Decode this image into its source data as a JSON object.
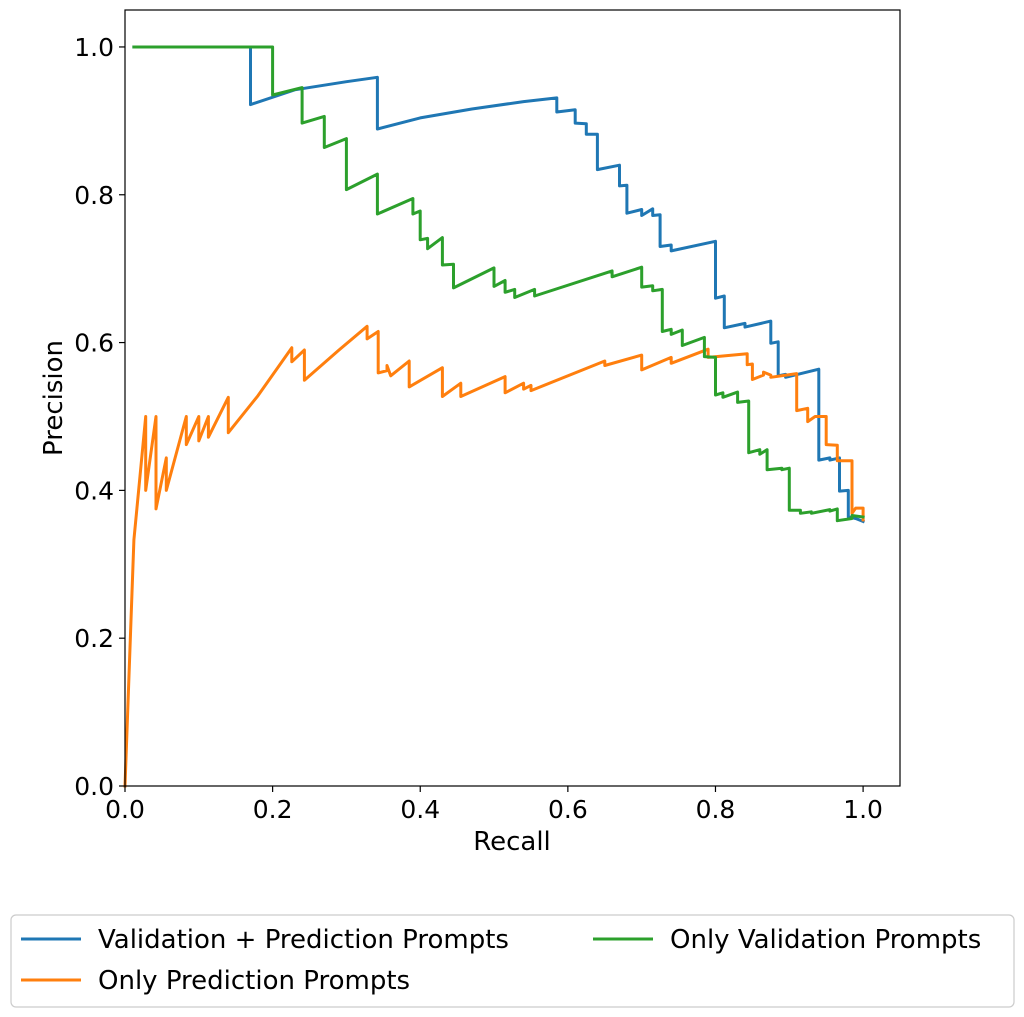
{
  "chart_data": {
    "type": "line",
    "xlabel": "Recall",
    "ylabel": "Precision",
    "xlim": [
      0.0,
      1.05
    ],
    "ylim": [
      0.0,
      1.05
    ],
    "xticks": [
      "0.0",
      "0.2",
      "0.4",
      "0.6",
      "0.8",
      "1.0"
    ],
    "yticks": [
      "0.0",
      "0.2",
      "0.4",
      "0.6",
      "0.8",
      "1.0"
    ],
    "grid": false,
    "legend_position": "bottom-outside",
    "series": [
      {
        "name": "Validation + Prediction Prompts",
        "color": "#1f77b4",
        "points": [
          [
            0.012,
            1.0
          ],
          [
            0.17,
            1.0
          ],
          [
            0.17,
            0.922
          ],
          [
            0.23,
            0.942
          ],
          [
            0.3,
            0.953
          ],
          [
            0.342,
            0.959
          ],
          [
            0.342,
            0.889
          ],
          [
            0.4,
            0.904
          ],
          [
            0.47,
            0.916
          ],
          [
            0.54,
            0.926
          ],
          [
            0.585,
            0.931
          ],
          [
            0.585,
            0.912
          ],
          [
            0.61,
            0.915
          ],
          [
            0.61,
            0.897
          ],
          [
            0.625,
            0.896
          ],
          [
            0.625,
            0.882
          ],
          [
            0.64,
            0.882
          ],
          [
            0.64,
            0.834
          ],
          [
            0.67,
            0.84
          ],
          [
            0.67,
            0.812
          ],
          [
            0.68,
            0.813
          ],
          [
            0.68,
            0.775
          ],
          [
            0.7,
            0.78
          ],
          [
            0.7,
            0.772
          ],
          [
            0.715,
            0.781
          ],
          [
            0.715,
            0.772
          ],
          [
            0.725,
            0.773
          ],
          [
            0.725,
            0.73
          ],
          [
            0.74,
            0.732
          ],
          [
            0.74,
            0.724
          ],
          [
            0.8,
            0.737
          ],
          [
            0.8,
            0.66
          ],
          [
            0.812,
            0.663
          ],
          [
            0.812,
            0.62
          ],
          [
            0.84,
            0.626
          ],
          [
            0.84,
            0.621
          ],
          [
            0.875,
            0.629
          ],
          [
            0.875,
            0.599
          ],
          [
            0.885,
            0.601
          ],
          [
            0.885,
            0.555
          ],
          [
            0.895,
            0.557
          ],
          [
            0.895,
            0.553
          ],
          [
            0.94,
            0.564
          ],
          [
            0.94,
            0.441
          ],
          [
            0.955,
            0.444
          ],
          [
            0.955,
            0.441
          ],
          [
            0.968,
            0.444
          ],
          [
            0.968,
            0.399
          ],
          [
            0.98,
            0.4
          ],
          [
            0.98,
            0.364
          ],
          [
            0.99,
            0.362
          ],
          [
            1.0,
            0.358
          ]
        ]
      },
      {
        "name": "Only Prediction Prompts",
        "color": "#ff7f0e",
        "points": [
          [
            0.0,
            0.0
          ],
          [
            0.012,
            0.333
          ],
          [
            0.028,
            0.5
          ],
          [
            0.028,
            0.4
          ],
          [
            0.042,
            0.5
          ],
          [
            0.042,
            0.375
          ],
          [
            0.056,
            0.444
          ],
          [
            0.056,
            0.4
          ],
          [
            0.083,
            0.5
          ],
          [
            0.083,
            0.462
          ],
          [
            0.1,
            0.5
          ],
          [
            0.1,
            0.467
          ],
          [
            0.113,
            0.5
          ],
          [
            0.113,
            0.472
          ],
          [
            0.14,
            0.526
          ],
          [
            0.14,
            0.478
          ],
          [
            0.18,
            0.528
          ],
          [
            0.226,
            0.593
          ],
          [
            0.226,
            0.574
          ],
          [
            0.243,
            0.59
          ],
          [
            0.243,
            0.549
          ],
          [
            0.29,
            0.59
          ],
          [
            0.328,
            0.622
          ],
          [
            0.328,
            0.605
          ],
          [
            0.343,
            0.615
          ],
          [
            0.343,
            0.559
          ],
          [
            0.355,
            0.562
          ],
          [
            0.355,
            0.569
          ],
          [
            0.36,
            0.555
          ],
          [
            0.385,
            0.575
          ],
          [
            0.385,
            0.54
          ],
          [
            0.43,
            0.566
          ],
          [
            0.43,
            0.527
          ],
          [
            0.455,
            0.545
          ],
          [
            0.455,
            0.527
          ],
          [
            0.515,
            0.554
          ],
          [
            0.515,
            0.532
          ],
          [
            0.54,
            0.545
          ],
          [
            0.54,
            0.537
          ],
          [
            0.55,
            0.542
          ],
          [
            0.55,
            0.535
          ],
          [
            0.65,
            0.575
          ],
          [
            0.65,
            0.569
          ],
          [
            0.7,
            0.583
          ],
          [
            0.7,
            0.563
          ],
          [
            0.74,
            0.58
          ],
          [
            0.74,
            0.572
          ],
          [
            0.79,
            0.591
          ],
          [
            0.79,
            0.58
          ],
          [
            0.843,
            0.585
          ],
          [
            0.843,
            0.57
          ],
          [
            0.85,
            0.571
          ],
          [
            0.85,
            0.55
          ],
          [
            0.865,
            0.556
          ],
          [
            0.865,
            0.56
          ],
          [
            0.875,
            0.556
          ],
          [
            0.875,
            0.553
          ],
          [
            0.91,
            0.558
          ],
          [
            0.91,
            0.508
          ],
          [
            0.925,
            0.511
          ],
          [
            0.925,
            0.493
          ],
          [
            0.935,
            0.5
          ],
          [
            0.95,
            0.5
          ],
          [
            0.95,
            0.462
          ],
          [
            0.965,
            0.461
          ],
          [
            0.965,
            0.44
          ],
          [
            0.985,
            0.44
          ],
          [
            0.985,
            0.369
          ],
          [
            0.99,
            0.376
          ],
          [
            1.0,
            0.376
          ],
          [
            1.0,
            0.36
          ]
        ]
      },
      {
        "name": "Only Validation Prompts",
        "color": "#2ca02c",
        "points": [
          [
            0.012,
            1.0
          ],
          [
            0.2,
            1.0
          ],
          [
            0.2,
            0.935
          ],
          [
            0.24,
            0.945
          ],
          [
            0.24,
            0.897
          ],
          [
            0.27,
            0.906
          ],
          [
            0.27,
            0.864
          ],
          [
            0.3,
            0.876
          ],
          [
            0.3,
            0.807
          ],
          [
            0.342,
            0.828
          ],
          [
            0.342,
            0.774
          ],
          [
            0.39,
            0.795
          ],
          [
            0.39,
            0.774
          ],
          [
            0.4,
            0.778
          ],
          [
            0.4,
            0.739
          ],
          [
            0.41,
            0.741
          ],
          [
            0.41,
            0.727
          ],
          [
            0.43,
            0.742
          ],
          [
            0.43,
            0.705
          ],
          [
            0.445,
            0.706
          ],
          [
            0.445,
            0.674
          ],
          [
            0.5,
            0.701
          ],
          [
            0.5,
            0.676
          ],
          [
            0.515,
            0.684
          ],
          [
            0.515,
            0.668
          ],
          [
            0.528,
            0.672
          ],
          [
            0.528,
            0.661
          ],
          [
            0.555,
            0.672
          ],
          [
            0.555,
            0.663
          ],
          [
            0.66,
            0.697
          ],
          [
            0.66,
            0.689
          ],
          [
            0.7,
            0.702
          ],
          [
            0.7,
            0.675
          ],
          [
            0.715,
            0.677
          ],
          [
            0.715,
            0.67
          ],
          [
            0.728,
            0.672
          ],
          [
            0.728,
            0.615
          ],
          [
            0.74,
            0.618
          ],
          [
            0.74,
            0.611
          ],
          [
            0.755,
            0.617
          ],
          [
            0.755,
            0.596
          ],
          [
            0.785,
            0.607
          ],
          [
            0.785,
            0.581
          ],
          [
            0.8,
            0.58
          ],
          [
            0.8,
            0.529
          ],
          [
            0.81,
            0.532
          ],
          [
            0.81,
            0.526
          ],
          [
            0.83,
            0.533
          ],
          [
            0.83,
            0.519
          ],
          [
            0.845,
            0.521
          ],
          [
            0.845,
            0.451
          ],
          [
            0.86,
            0.455
          ],
          [
            0.86,
            0.449
          ],
          [
            0.87,
            0.455
          ],
          [
            0.87,
            0.428
          ],
          [
            0.89,
            0.43
          ],
          [
            0.89,
            0.428
          ],
          [
            0.9,
            0.43
          ],
          [
            0.9,
            0.373
          ],
          [
            0.915,
            0.373
          ],
          [
            0.915,
            0.369
          ],
          [
            0.93,
            0.371
          ],
          [
            0.93,
            0.369
          ],
          [
            0.955,
            0.374
          ],
          [
            0.955,
            0.372
          ],
          [
            0.965,
            0.375
          ],
          [
            0.965,
            0.359
          ],
          [
            0.985,
            0.362
          ],
          [
            0.985,
            0.366
          ],
          [
            1.0,
            0.364
          ]
        ]
      }
    ]
  }
}
